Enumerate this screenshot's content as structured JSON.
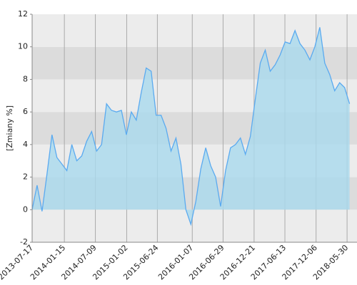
{
  "chart_data": {
    "type": "area",
    "y_label": "[Zmiany %]",
    "x": [
      "2013-07-17",
      "2013-08-14",
      "2013-09-11",
      "2013-10-09",
      "2013-11-06",
      "2013-12-04",
      "2014-01-01",
      "2014-01-29",
      "2014-02-26",
      "2014-03-26",
      "2014-04-23",
      "2014-05-21",
      "2014-06-18",
      "2014-07-16",
      "2014-08-13",
      "2014-09-10",
      "2014-10-08",
      "2014-11-05",
      "2014-12-03",
      "2014-12-31",
      "2015-01-28",
      "2015-02-25",
      "2015-03-25",
      "2015-04-22",
      "2015-05-20",
      "2015-06-17",
      "2015-07-15",
      "2015-08-12",
      "2015-09-09",
      "2015-10-07",
      "2015-11-04",
      "2015-12-02",
      "2015-12-30",
      "2016-01-27",
      "2016-02-24",
      "2016-03-23",
      "2016-04-20",
      "2016-05-18",
      "2016-06-15",
      "2016-07-13",
      "2016-08-10",
      "2016-09-07",
      "2016-10-05",
      "2016-11-02",
      "2016-11-30",
      "2016-12-28",
      "2017-01-25",
      "2017-02-22",
      "2017-03-22",
      "2017-04-19",
      "2017-05-17",
      "2017-06-14",
      "2017-07-12",
      "2017-08-09",
      "2017-09-06",
      "2017-10-04",
      "2017-11-01",
      "2017-11-29",
      "2017-12-27",
      "2018-01-24",
      "2018-02-21",
      "2018-03-21",
      "2018-04-18",
      "2018-05-16",
      "2018-06-13"
    ],
    "values": [
      0,
      1.5,
      -0.1,
      2.2,
      4.6,
      3.2,
      2.8,
      2.4,
      4,
      3,
      3.3,
      4.2,
      4.8,
      3.6,
      4,
      6.5,
      6.1,
      6,
      6.1,
      4.6,
      6,
      5.5,
      7.2,
      8.7,
      8.5,
      5.8,
      5.8,
      5,
      3.6,
      4.4,
      2.8,
      0,
      -0.9,
      0.5,
      2.5,
      3.8,
      2.7,
      2,
      0.2,
      2.4,
      3.8,
      4,
      4.4,
      3.4,
      4.5,
      6.8,
      9,
      9.8,
      8.5,
      8.9,
      9.5,
      10.3,
      10.2,
      11,
      10.2,
      9.8,
      9.2,
      10,
      11.2,
      9,
      8.3,
      7.3,
      7.8,
      7.5,
      6.5
    ],
    "color": "#5aaaf0",
    "fill": "#a9d9ee",
    "xlim": [
      "2013-07-17",
      "2018-07-25"
    ],
    "xticks": [
      "2013-07-17",
      "2014-01-15",
      "2014-07-09",
      "2015-01-02",
      "2015-06-24",
      "2016-01-07",
      "2016-06-29",
      "2016-12-21",
      "2017-06-13",
      "2017-12-06",
      "2018-05-30"
    ],
    "ylim": [
      -2,
      12
    ],
    "yticks": [
      -2,
      0,
      2,
      4,
      6,
      8,
      10,
      12
    ],
    "grid": true
  }
}
